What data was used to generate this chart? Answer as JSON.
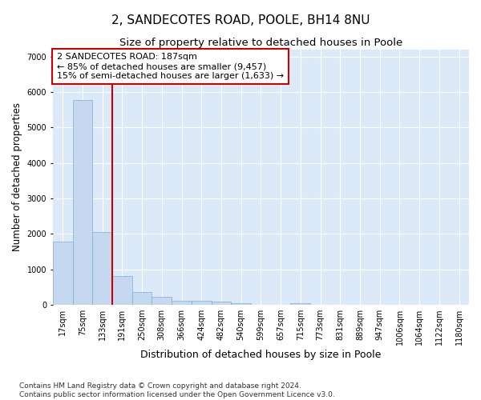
{
  "title": "2, SANDECOTES ROAD, POOLE, BH14 8NU",
  "subtitle": "Size of property relative to detached houses in Poole",
  "xlabel": "Distribution of detached houses by size in Poole",
  "ylabel": "Number of detached properties",
  "bin_labels": [
    "17sqm",
    "75sqm",
    "133sqm",
    "191sqm",
    "250sqm",
    "308sqm",
    "366sqm",
    "424sqm",
    "482sqm",
    "540sqm",
    "599sqm",
    "657sqm",
    "715sqm",
    "773sqm",
    "831sqm",
    "889sqm",
    "947sqm",
    "1006sqm",
    "1064sqm",
    "1122sqm",
    "1180sqm"
  ],
  "bar_values": [
    1780,
    5780,
    2060,
    820,
    360,
    220,
    120,
    110,
    100,
    50,
    0,
    0,
    50,
    0,
    0,
    0,
    0,
    0,
    0,
    0,
    0
  ],
  "bar_color": "#c5d8f0",
  "bar_edge_color": "#7aaed6",
  "vline_x_idx": 2.5,
  "vline_color": "#cc0000",
  "annotation_text": "2 SANDECOTES ROAD: 187sqm\n← 85% of detached houses are smaller (9,457)\n15% of semi-detached houses are larger (1,633) →",
  "annotation_box_color": "#cc0000",
  "ylim": [
    0,
    7200
  ],
  "yticks": [
    0,
    1000,
    2000,
    3000,
    4000,
    5000,
    6000,
    7000
  ],
  "background_color": "#dce9f8",
  "grid_color": "#ffffff",
  "footer_line1": "Contains HM Land Registry data © Crown copyright and database right 2024.",
  "footer_line2": "Contains public sector information licensed under the Open Government Licence v3.0.",
  "title_fontsize": 11,
  "subtitle_fontsize": 9.5,
  "xlabel_fontsize": 9,
  "ylabel_fontsize": 8.5,
  "tick_fontsize": 7,
  "annotation_fontsize": 8,
  "footer_fontsize": 6.5
}
